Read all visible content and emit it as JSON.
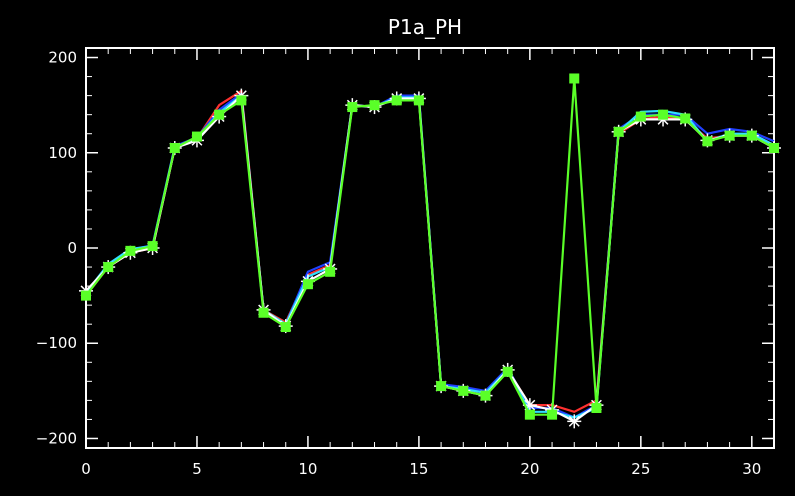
{
  "chart_data": {
    "type": "line",
    "title": "P1a_PH",
    "xlabel": "",
    "ylabel": "",
    "xlim": [
      0,
      31
    ],
    "ylim": [
      -210,
      210
    ],
    "x_ticks": [
      0,
      5,
      10,
      15,
      20,
      25,
      30
    ],
    "y_ticks": [
      -200,
      -100,
      0,
      100,
      200
    ],
    "x_tick_labels": [
      "0",
      "5",
      "10",
      "15",
      "20",
      "25",
      "30"
    ],
    "y_tick_labels": [
      "−200",
      "−100",
      "0",
      "100",
      "200"
    ],
    "grid": false,
    "background_color": "#000000",
    "axis_color": "#ffffff",
    "x": [
      0,
      1,
      2,
      3,
      4,
      5,
      6,
      7,
      8,
      9,
      10,
      11,
      12,
      13,
      14,
      15,
      16,
      17,
      18,
      19,
      20,
      21,
      22,
      23,
      24,
      25,
      26,
      27,
      28,
      29,
      30,
      31
    ],
    "series": [
      {
        "color": "#ff3030",
        "marker": "none",
        "values": [
          -50,
          -20,
          -5,
          0,
          105,
          115,
          150,
          165,
          -65,
          -78,
          -28,
          -18,
          150,
          148,
          158,
          158,
          -145,
          -148,
          -152,
          -128,
          -165,
          -165,
          -172,
          -160,
          120,
          135,
          138,
          135,
          115,
          118,
          120,
          108
        ]
      },
      {
        "color": "#2040ff",
        "marker": "none",
        "values": [
          -48,
          -18,
          -2,
          3,
          107,
          116,
          145,
          162,
          -66,
          -80,
          -25,
          -15,
          150,
          148,
          160,
          160,
          -143,
          -146,
          -150,
          -126,
          -168,
          -168,
          -178,
          -165,
          125,
          140,
          140,
          140,
          120,
          125,
          122,
          112
        ]
      },
      {
        "color": "#30e0ff",
        "marker": "none",
        "values": [
          -47,
          -17,
          -1,
          2,
          106,
          115,
          142,
          160,
          -65,
          -80,
          -30,
          -20,
          150,
          148,
          158,
          158,
          -145,
          -148,
          -152,
          -128,
          -172,
          -172,
          -178,
          -168,
          122,
          143,
          144,
          140,
          112,
          120,
          120,
          108
        ]
      },
      {
        "color": "#ffffff",
        "marker": "asterisk",
        "values": [
          -45,
          -20,
          -5,
          0,
          105,
          113,
          138,
          160,
          -65,
          -82,
          -35,
          -22,
          150,
          148,
          157,
          157,
          -145,
          -150,
          -155,
          -128,
          -165,
          -170,
          -182,
          -165,
          122,
          135,
          135,
          135,
          113,
          118,
          118,
          105
        ]
      },
      {
        "color": "#5aff28",
        "marker": "square",
        "values": [
          -50,
          -20,
          -3,
          2,
          105,
          117,
          140,
          155,
          -68,
          -83,
          -38,
          -25,
          148,
          150,
          155,
          155,
          -145,
          -150,
          -155,
          -130,
          -175,
          -175,
          178,
          -168,
          122,
          138,
          140,
          136,
          112,
          118,
          118,
          105
        ]
      }
    ]
  }
}
